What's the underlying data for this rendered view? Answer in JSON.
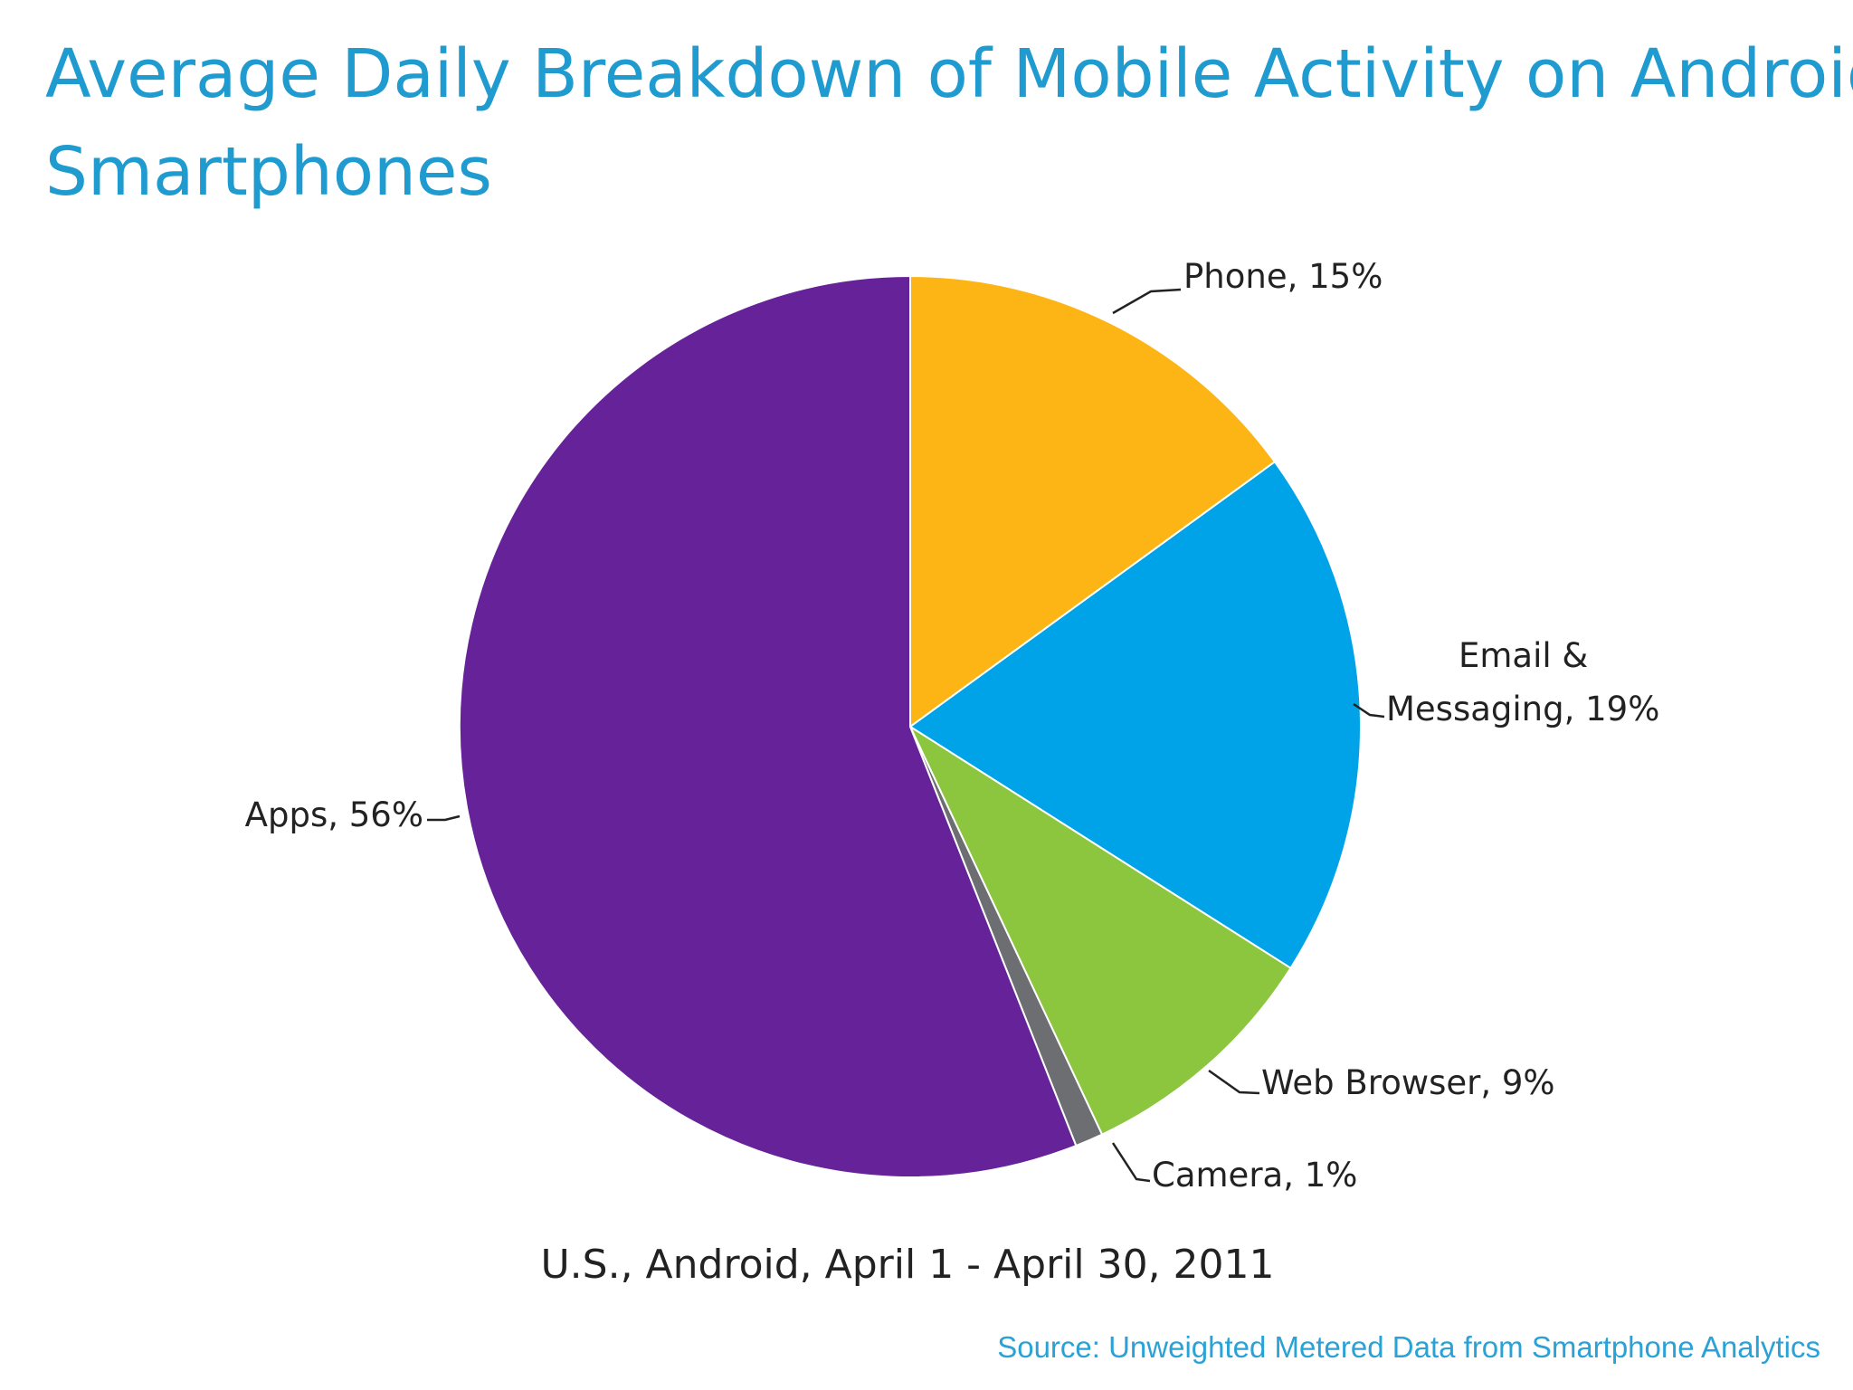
{
  "chart_data": {
    "type": "pie",
    "title_lines": [
      "Average Daily Breakdown of Mobile Activity on Android",
      "Smartphones"
    ],
    "subtitle": "U.S., Android, April 1 - April 30, 2011",
    "source": "Source: Unweighted Metered Data from Smartphone Analytics",
    "start": "top, clockwise",
    "slices": [
      {
        "name": "Phone",
        "value": 15,
        "label": "Phone, 15%",
        "color": "#fdb515"
      },
      {
        "name": "Email & Messaging",
        "value": 19,
        "label_lines": [
          "Email &",
          "Messaging, 19%"
        ],
        "color": "#00a3e8"
      },
      {
        "name": "Web Browser",
        "value": 9,
        "label": "Web Browser, 9%",
        "color": "#8cc63f"
      },
      {
        "name": "Camera",
        "value": 1,
        "label": "Camera, 1%",
        "color": "#6d6e71"
      },
      {
        "name": "Apps",
        "value": 56,
        "label": "Apps, 56%",
        "color": "#662299"
      }
    ]
  }
}
